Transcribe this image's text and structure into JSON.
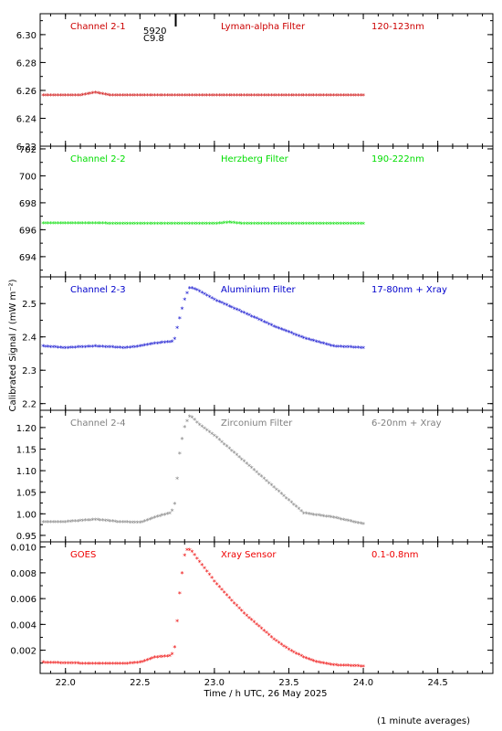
{
  "chart_data": {
    "type": "scatter",
    "marker": "*",
    "xlabel": "Time / h UTC, 26 May 2025",
    "ylabel": "Calibrated Signal / (mW m⁻²)",
    "footnote": "(1 minute averages)",
    "xlim": [
      21.83,
      24.87
    ],
    "xticks": [
      "22.0",
      "22.5",
      "23.0",
      "23.5",
      "24.0",
      "24.5"
    ],
    "xtick_values": [
      22.0,
      22.5,
      23.0,
      23.5,
      24.0,
      24.5
    ],
    "annotation": {
      "x": 22.82,
      "line1": "5920",
      "line2": "C9.8"
    },
    "panels": [
      {
        "id": "ch2-1",
        "name": "Channel 2-1",
        "filter": "Lyman-alpha Filter",
        "band": "120-123nm",
        "color": "#cc0000",
        "ylim": [
          6.22,
          6.315
        ],
        "yticks": [
          "6.22",
          "6.24",
          "6.26",
          "6.28",
          "6.30"
        ],
        "ytick_values": [
          6.22,
          6.24,
          6.26,
          6.28,
          6.3
        ],
        "x": [
          21.85,
          22.0,
          22.1,
          22.2,
          22.3,
          22.5,
          22.75,
          23.0,
          23.5,
          24.0
        ],
        "y": [
          6.256,
          6.256,
          6.256,
          6.258,
          6.256,
          6.256,
          6.256,
          6.256,
          6.256,
          6.256
        ]
      },
      {
        "id": "ch2-2",
        "name": "Channel 2-2",
        "filter": "Herzberg Filter",
        "band": "190-222nm",
        "color": "#00dd00",
        "ylim": [
          692.5,
          702.2
        ],
        "yticks": [
          "694",
          "696",
          "698",
          "700",
          "702"
        ],
        "ytick_values": [
          694,
          696,
          698,
          700,
          702
        ],
        "x": [
          21.85,
          22.5,
          23.0,
          23.1,
          23.2,
          23.5,
          24.0
        ],
        "y": [
          696.45,
          696.4,
          696.4,
          696.5,
          696.4,
          696.4,
          696.4
        ]
      },
      {
        "id": "ch2-3",
        "name": "Channel 2-3",
        "filter": "Aluminium Filter",
        "band": "17-80nm + Xray",
        "color": "#0000cc",
        "ylim": [
          2.18,
          2.58
        ],
        "yticks": [
          "2.2",
          "2.3",
          "2.4",
          "2.5"
        ],
        "ytick_values": [
          2.2,
          2.3,
          2.4,
          2.5
        ],
        "x": [
          21.85,
          22.0,
          22.2,
          22.4,
          22.5,
          22.6,
          22.73,
          22.75,
          22.77,
          22.8,
          22.83,
          22.85,
          22.9,
          23.0,
          23.2,
          23.4,
          23.6,
          23.8,
          24.0
        ],
        "y": [
          2.37,
          2.365,
          2.37,
          2.365,
          2.37,
          2.378,
          2.385,
          2.425,
          2.46,
          2.51,
          2.545,
          2.545,
          2.535,
          2.51,
          2.47,
          2.43,
          2.395,
          2.37,
          2.365
        ]
      },
      {
        "id": "ch2-4",
        "name": "Channel 2-4",
        "filter": "Zirconium Filter",
        "band": "6-20nm + Xray",
        "color": "#808080",
        "ylim": [
          0.935,
          1.24
        ],
        "yticks": [
          "0.95",
          "1.00",
          "1.05",
          "1.10",
          "1.15",
          "1.20"
        ],
        "ytick_values": [
          0.95,
          1.0,
          1.05,
          1.1,
          1.15,
          1.2
        ],
        "x": [
          21.85,
          22.0,
          22.2,
          22.35,
          22.5,
          22.6,
          22.7,
          22.73,
          22.75,
          22.77,
          22.8,
          22.83,
          22.85,
          22.9,
          23.0,
          23.2,
          23.4,
          23.5,
          23.6,
          23.8,
          24.0
        ],
        "y": [
          0.98,
          0.98,
          0.985,
          0.98,
          0.978,
          0.99,
          1.0,
          1.01,
          1.08,
          1.15,
          1.2,
          1.225,
          1.222,
          1.205,
          1.18,
          1.12,
          1.06,
          1.03,
          1.0,
          0.99,
          0.975
        ]
      },
      {
        "id": "goes",
        "name": "GOES",
        "filter": "Xray Sensor",
        "band": "0.1-0.8nm",
        "color": "#ee0000",
        "ylim": [
          0.0002,
          0.0104
        ],
        "yticks": [
          "0.002",
          "0.004",
          "0.006",
          "0.008",
          "0.010"
        ],
        "ytick_values": [
          0.002,
          0.004,
          0.006,
          0.008,
          0.01
        ],
        "x": [
          21.85,
          22.0,
          22.2,
          22.4,
          22.5,
          22.6,
          22.7,
          22.73,
          22.75,
          22.77,
          22.8,
          22.82,
          22.85,
          22.9,
          23.0,
          23.1,
          23.2,
          23.3,
          23.4,
          23.5,
          23.6,
          23.7,
          23.8,
          24.0
        ],
        "y": [
          0.001,
          0.00095,
          0.0009,
          0.0009,
          0.001,
          0.0014,
          0.0015,
          0.0018,
          0.0042,
          0.0068,
          0.0093,
          0.0098,
          0.0096,
          0.0088,
          0.0073,
          0.006,
          0.0048,
          0.0038,
          0.0028,
          0.002,
          0.0014,
          0.001,
          0.0008,
          0.0007
        ]
      }
    ]
  }
}
